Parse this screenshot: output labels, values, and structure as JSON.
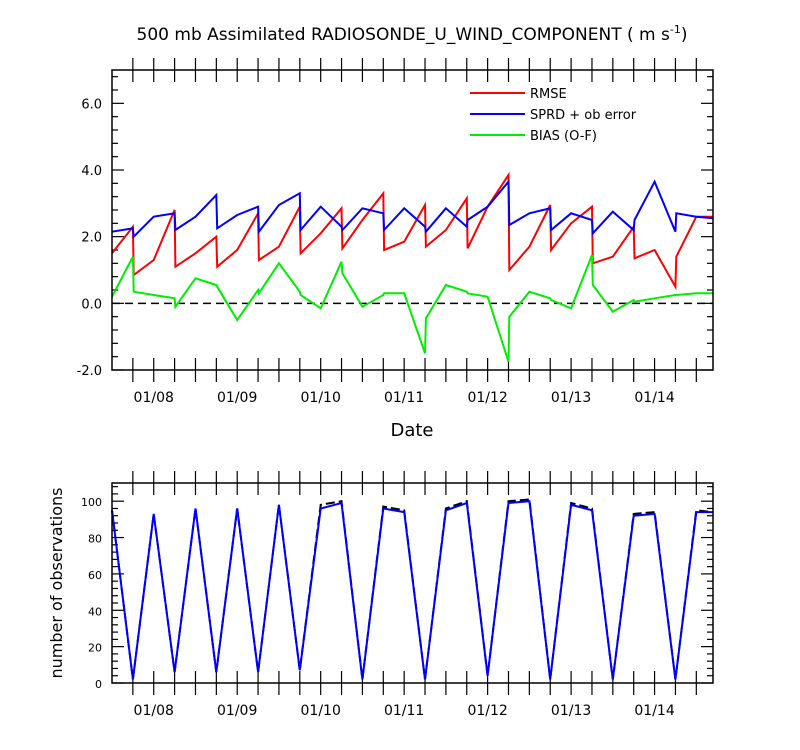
{
  "chart_data": [
    {
      "type": "line",
      "title": "500 mb Assimilated RADIOSONDE_U_WIND_COMPONENT ( m s",
      "title_unit_exp": "-1",
      "title_close": ")",
      "xlabel": "Date",
      "ylabel": "",
      "xlim": [
        0,
        7.2
      ],
      "ylim": [
        -2.0,
        7.0
      ],
      "xticks": [
        0.5,
        1.5,
        2.5,
        3.5,
        4.5,
        5.5,
        6.5
      ],
      "xtick_labels": [
        "01/08",
        "01/09",
        "01/10",
        "01/11",
        "01/12",
        "01/13",
        "01/14"
      ],
      "yticks": [
        -2.0,
        0.0,
        2.0,
        4.0,
        6.0
      ],
      "ytick_labels": [
        "-2.0",
        "0.0",
        "2.0",
        "4.0",
        "6.0"
      ],
      "zero_line": true,
      "legend": "top-right",
      "series": [
        {
          "name": "RMSE",
          "color": "#ff0000",
          "x": [
            0.0,
            0.25,
            0.26,
            0.5,
            0.75,
            0.76,
            1.0,
            1.25,
            1.26,
            1.5,
            1.75,
            1.76,
            2.0,
            2.25,
            2.26,
            2.5,
            2.75,
            2.76,
            3.0,
            3.25,
            3.26,
            3.5,
            3.75,
            3.76,
            4.0,
            4.25,
            4.26,
            4.5,
            4.75,
            4.76,
            5.0,
            5.25,
            5.26,
            5.5,
            5.75,
            5.76,
            6.0,
            6.25,
            6.26,
            6.5,
            6.75,
            6.76,
            7.0,
            7.2
          ],
          "y": [
            1.5,
            2.3,
            0.85,
            1.3,
            2.8,
            1.1,
            1.5,
            2.0,
            1.1,
            1.6,
            2.7,
            1.3,
            1.7,
            2.9,
            1.5,
            2.1,
            2.85,
            1.65,
            2.5,
            3.3,
            1.6,
            1.85,
            2.95,
            1.7,
            2.2,
            3.15,
            1.65,
            2.9,
            3.85,
            1.0,
            1.7,
            2.95,
            1.6,
            2.4,
            2.9,
            1.2,
            1.4,
            2.3,
            1.35,
            1.6,
            0.5,
            1.4,
            2.6,
            2.6
          ]
        },
        {
          "name": "SPRD + ob error",
          "color": "#0000ff",
          "x": [
            0.0,
            0.25,
            0.26,
            0.5,
            0.75,
            0.76,
            1.0,
            1.25,
            1.26,
            1.5,
            1.75,
            1.76,
            2.0,
            2.25,
            2.26,
            2.5,
            2.75,
            2.76,
            3.0,
            3.25,
            3.26,
            3.5,
            3.75,
            3.76,
            4.0,
            4.25,
            4.26,
            4.5,
            4.75,
            4.76,
            5.0,
            5.25,
            5.26,
            5.5,
            5.75,
            5.76,
            6.0,
            6.25,
            6.26,
            6.5,
            6.75,
            6.76,
            7.0,
            7.2
          ],
          "y": [
            2.15,
            2.25,
            2.0,
            2.6,
            2.7,
            2.2,
            2.6,
            3.25,
            2.25,
            2.65,
            2.9,
            2.15,
            2.95,
            3.3,
            2.2,
            2.9,
            2.3,
            2.2,
            2.85,
            2.7,
            2.2,
            2.85,
            2.3,
            2.15,
            2.85,
            2.3,
            2.5,
            2.9,
            3.65,
            2.35,
            2.7,
            2.85,
            2.2,
            2.7,
            2.5,
            2.1,
            2.75,
            2.2,
            2.5,
            3.65,
            2.15,
            2.7,
            2.6,
            2.55
          ]
        },
        {
          "name": "BIAS (O-F)",
          "color": "#00ee00",
          "x": [
            0.0,
            0.25,
            0.26,
            0.5,
            0.75,
            0.76,
            1.0,
            1.25,
            1.26,
            1.5,
            1.75,
            1.76,
            2.0,
            2.25,
            2.26,
            2.5,
            2.75,
            2.76,
            3.0,
            3.25,
            3.26,
            3.5,
            3.75,
            3.76,
            4.0,
            4.25,
            4.26,
            4.5,
            4.75,
            4.76,
            5.0,
            5.25,
            5.26,
            5.5,
            5.75,
            5.76,
            6.0,
            6.25,
            6.26,
            6.5,
            6.75,
            6.76,
            7.0,
            7.2
          ],
          "y": [
            0.2,
            1.4,
            0.35,
            0.25,
            0.15,
            -0.1,
            0.75,
            0.55,
            0.5,
            -0.5,
            0.4,
            0.3,
            1.2,
            0.35,
            0.25,
            -0.15,
            1.25,
            0.9,
            -0.1,
            0.25,
            0.3,
            0.3,
            -1.5,
            -0.45,
            0.55,
            0.35,
            0.3,
            0.2,
            -1.75,
            -0.4,
            0.35,
            0.15,
            0.1,
            -0.15,
            1.45,
            0.55,
            -0.25,
            0.1,
            0.05,
            0.15,
            0.25,
            0.25,
            0.3,
            0.3
          ]
        }
      ]
    },
    {
      "type": "line",
      "title": "",
      "xlabel": "",
      "ylabel": "number of observations",
      "xlim": [
        0,
        7.2
      ],
      "ylim": [
        0,
        110
      ],
      "xticks": [
        0.5,
        1.5,
        2.5,
        3.5,
        4.5,
        5.5,
        6.5
      ],
      "xtick_labels": [
        "01/08",
        "01/09",
        "01/10",
        "01/11",
        "01/12",
        "01/13",
        "01/14"
      ],
      "yticks": [
        0,
        20,
        40,
        60,
        80,
        100
      ],
      "ytick_labels": [
        "0",
        "20",
        "40",
        "60",
        "80",
        "100"
      ],
      "series": [
        {
          "color": "#000000",
          "dash": true,
          "x": [
            0.0,
            0.25,
            0.5,
            0.75,
            1.0,
            1.25,
            1.5,
            1.75,
            2.0,
            2.25,
            2.5,
            2.75,
            3.0,
            3.25,
            3.5,
            3.75,
            4.0,
            4.25,
            4.5,
            4.75,
            5.0,
            5.25,
            5.5,
            5.75,
            6.0,
            6.25,
            6.5,
            6.75,
            7.0,
            7.2
          ],
          "y": [
            95,
            2,
            93,
            6,
            96,
            6,
            96,
            6,
            98,
            7,
            98,
            100,
            2,
            97,
            95,
            2,
            96,
            100,
            4,
            100,
            101,
            2,
            99,
            96,
            2,
            93,
            94,
            2,
            95,
            94
          ]
        },
        {
          "color": "#0000ff",
          "x": [
            0.0,
            0.25,
            0.5,
            0.75,
            1.0,
            1.25,
            1.5,
            1.75,
            2.0,
            2.25,
            2.5,
            2.75,
            3.0,
            3.25,
            3.5,
            3.75,
            4.0,
            4.25,
            4.5,
            4.75,
            5.0,
            5.25,
            5.5,
            5.75,
            6.0,
            6.25,
            6.5,
            6.75,
            7.0,
            7.2
          ],
          "y": [
            95,
            2,
            93,
            6,
            96,
            6,
            96,
            6,
            98,
            7,
            96,
            99,
            2,
            96,
            94,
            2,
            95,
            99,
            4,
            99,
            100,
            2,
            98,
            95,
            2,
            92,
            93,
            2,
            94,
            94
          ]
        }
      ]
    }
  ]
}
